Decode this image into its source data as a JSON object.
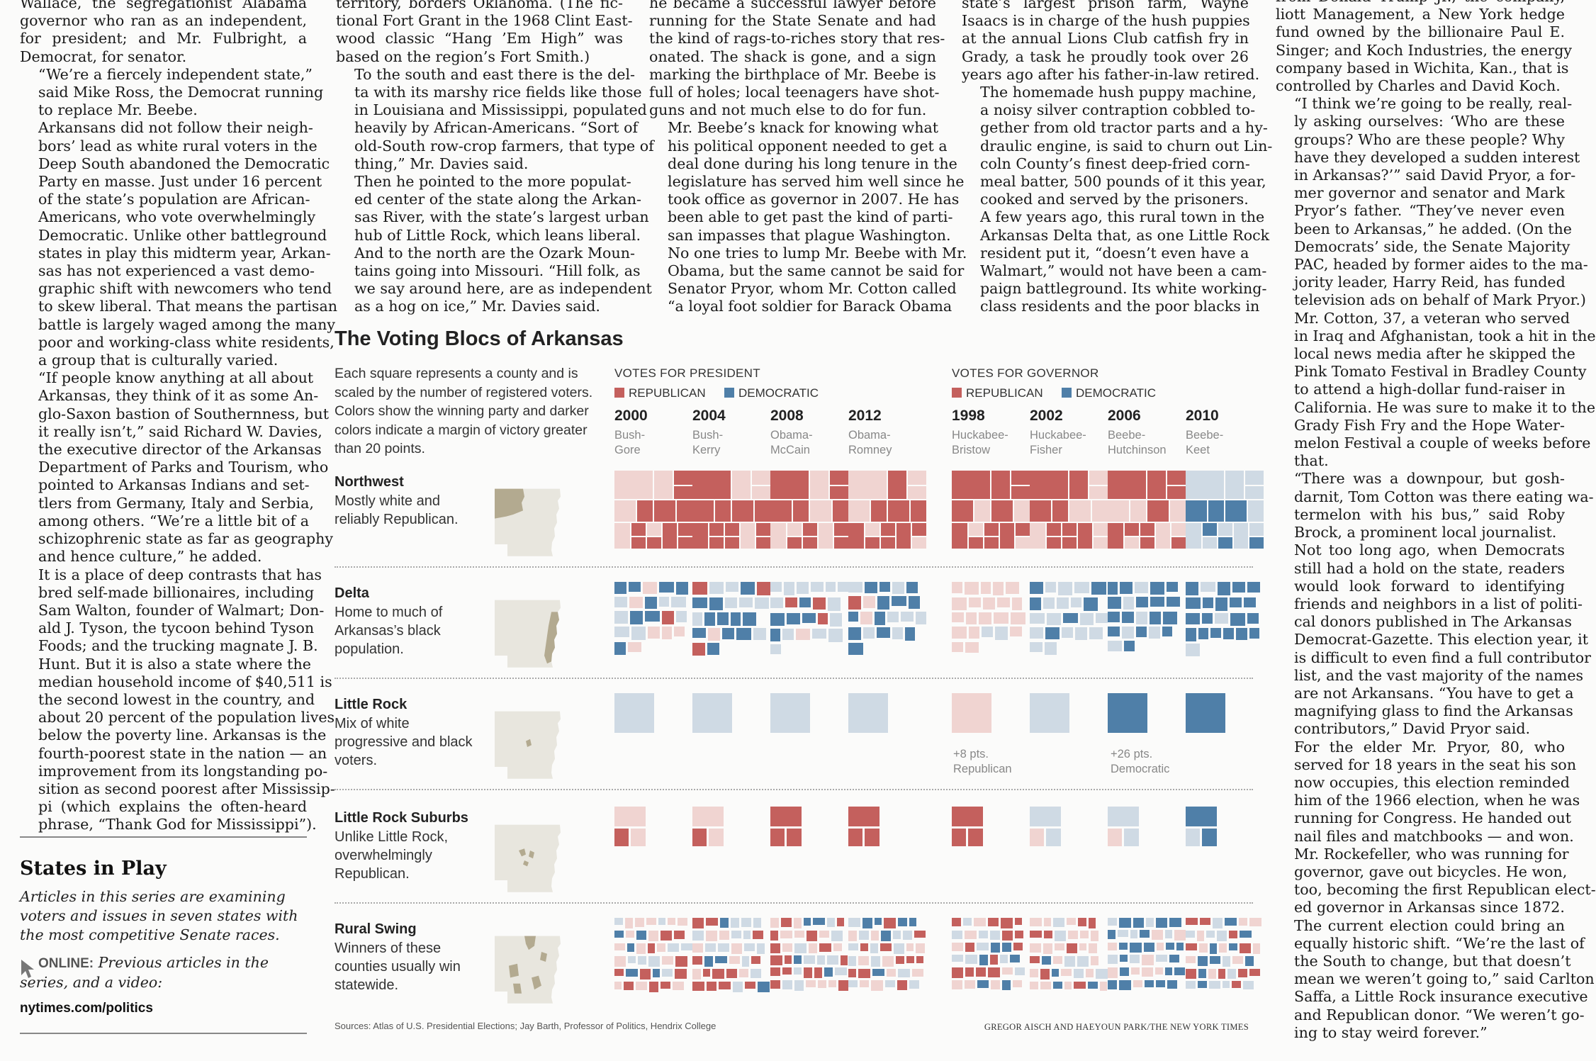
{
  "col1": [
    {
      "indent": false,
      "lines": [
        "Wallace, the segregationist Alabama",
        "governor who ran as an independent,",
        "for president; and Mr. Fulbright, a",
        "Democrat, for senator."
      ]
    },
    {
      "indent": true,
      "lines": [
        "“We’re a fiercely independent state,”",
        "said Mike Ross, the Democrat running",
        "to replace Mr. Beebe."
      ]
    },
    {
      "indent": true,
      "lines": [
        "Arkansans did not follow their neigh-",
        "bors’ lead as white rural voters in the",
        "Deep South abandoned the Democratic",
        "Party en masse. Just under 16 percent",
        "of the state’s population are African-",
        "Americans, who vote overwhelmingly",
        "Democratic. Unlike other battleground",
        "states in play this midterm year, Arkan-",
        "sas has not experienced a vast demo-",
        "graphic shift with newcomers who tend",
        "to skew liberal. That means the partisan",
        "battle is largely waged among the many",
        "poor and working-class white residents,",
        "a group that is culturally varied."
      ]
    },
    {
      "indent": true,
      "lines": [
        "“If people know anything at all about",
        "Arkansas, they think of it as some An-",
        "glo-Saxon bastion of Southernness, but",
        "it really isn’t,” said Richard W. Davies,",
        "the executive director of the Arkansas",
        "Department of Parks and Tourism, who",
        "pointed to Arkansas Indians and set-",
        "tlers from Germany, Italy and Serbia,",
        "among others. “We’re a little bit of a",
        "schizophrenic state as far as geography",
        "and hence culture,” he added."
      ]
    },
    {
      "indent": true,
      "lines": [
        "It is a place of deep contrasts that has",
        "bred self-made billionaires, including",
        "Sam Walton, founder of Walmart; Don-",
        "ald J. Tyson, the tycoon behind Tyson",
        "Foods; and the trucking magnate J. B.",
        "Hunt. But it is also a state where the",
        "median household income of $40,511 is",
        "the second lowest in the country, and",
        "about 20 percent of the population lives",
        "below the poverty line. Arkansas is the",
        "fourth-poorest state in the nation — an",
        "improvement from its longstanding po-",
        "sition as second poorest after Mississip-",
        "pi (which explains the often-heard",
        "phrase, “Thank God for Mississippi”)."
      ]
    }
  ],
  "col2": [
    {
      "indent": false,
      "lines": [
        "territory, borders Oklahoma. (The fic-",
        "tional Fort Grant in the 1968 Clint East-",
        "wood classic “Hang ’Em High” was",
        "based on the region’s Fort Smith.)"
      ]
    },
    {
      "indent": true,
      "lines": [
        "To the south and east there is the del-",
        "ta with its marshy rice fields like those",
        "in Louisiana and Mississippi, populated",
        "heavily by African-Americans. “Sort of",
        "old-South row-crop farmers, that type of",
        "thing,” Mr. Davies said."
      ]
    },
    {
      "indent": true,
      "lines": [
        "Then he pointed to the more populat-",
        "ed center of the state along the Arkan-",
        "sas River, with the state’s largest urban",
        "hub of Little Rock, which leans liberal.",
        "And to the north are the Ozark Moun-",
        "tains going into Missouri. “Hill folk, as",
        "we say around here, are as independent",
        "as a hog on ice,” Mr. Davies said."
      ]
    }
  ],
  "col3": [
    {
      "indent": false,
      "lines": [
        "he became a successful lawyer before",
        "running for the State Senate and had",
        "the kind of rags-to-riches story that res-",
        "onated. The shack is gone, and a sign",
        "marking the birthplace of Mr. Beebe is",
        "full of holes; local teenagers have shot-",
        "guns and not much else to do for fun."
      ]
    },
    {
      "indent": true,
      "lines": [
        "Mr. Beebe’s knack for knowing what",
        "his political opponent needed to get a",
        "deal done during his long tenure in the",
        "legislature has served him well since he",
        "took office as governor in 2007. He has",
        "been able to get past the kind of parti-",
        "san impasses that plague Washington.",
        "No one tries to lump Mr. Beebe with Mr.",
        "Obama, but the same cannot be said for",
        "Senator Pryor, whom Mr. Cotton called",
        "“a loyal foot soldier for Barack Obama"
      ]
    }
  ],
  "col4": [
    {
      "indent": false,
      "lines": [
        "state’s largest prison farm, Wayne",
        "Isaacs is in charge of the hush puppies",
        "at the annual Lions Club catfish fry in",
        "Grady, a task he proudly took over 26",
        "years ago after his father-in-law retired."
      ]
    },
    {
      "indent": true,
      "lines": [
        "The homemade hush puppy machine,",
        "a noisy silver contraption cobbled to-",
        "gether from old tractor parts and a hy-",
        "draulic engine, is said to churn out Lin-",
        "coln County’s finest deep-fried corn-",
        "meal batter, 500 pounds of it this year,",
        "cooked and served by the prisoners."
      ]
    },
    {
      "indent": true,
      "lines": [
        "A few years ago, this rural town in the",
        "Arkansas Delta that, as one Little Rock",
        "resident put it, “doesn’t even have a",
        "Walmart,” would not have been a cam-",
        "paign battleground. Its white working-",
        "class residents and the poor blacks in"
      ]
    }
  ],
  "col5": [
    {
      "indent": false,
      "lines": [
        "from Donald Trump Jr., the company,",
        "liott Management, a New York hedge",
        "fund owned by the billionaire Paul E.",
        "Singer; and Koch Industries, the energy",
        "company based in Wichita, Kan., that is",
        "controlled by Charles and David Koch."
      ]
    },
    {
      "indent": true,
      "lines": [
        "“I think we’re going to be really, real-",
        "ly asking ourselves: ‘Who are these",
        "groups? Who are these people? Why",
        "have they developed a sudden interest",
        "in Arkansas?’” said David Pryor, a for-",
        "mer governor and senator and Mark",
        "Pryor’s father. “They’ve never even",
        "been to Arkansas,” he added. (On the",
        "Democrats’ side, the Senate Majority",
        "PAC, headed by former aides to the ma-",
        "jority leader, Harry Reid, has funded",
        "television ads on behalf of Mark Pryor.)"
      ]
    },
    {
      "indent": true,
      "lines": [
        "Mr. Cotton, 37, a veteran who served",
        "in Iraq and Afghanistan, took a hit in the",
        "local news media after he skipped the",
        "Pink Tomato Festival in Bradley County",
        "to attend a high-dollar fund-raiser in",
        "California. He was sure to make it to the",
        "Grady Fish Fry and the Hope Water-",
        "melon Festival a couple of weeks before",
        "that."
      ]
    },
    {
      "indent": true,
      "lines": [
        "“There was a downpour, but gosh-",
        "darnit, Tom Cotton was there eating wa-",
        "termelon with his bus,” said Roby",
        "Brock, a prominent local journalist."
      ]
    },
    {
      "indent": true,
      "lines": [
        "Not too long ago, when Democrats",
        "still had a hold on the state, readers",
        "would look forward to identifying",
        "friends and neighbors in a list of politi-",
        "cal donors published in The Arkansas",
        "Democrat-Gazette. This election year, it",
        "is difficult to even find a full contributor",
        "list, and the vast majority of the names",
        "are not Arkansans. “You have to get a",
        "magnifying glass to find the Arkansas",
        "contributors,” David Pryor said."
      ]
    },
    {
      "indent": true,
      "lines": [
        "For the elder Mr. Pryor, 80, who",
        "served for 18 years in the seat his son",
        "now occupies, this election reminded",
        "him of the 1966 election, when he was",
        "running for Congress. He handed out",
        "nail files and matchbooks — and won.",
        "Mr. Rockefeller, who was running for",
        "governor, gave out bicycles. He won,",
        "too, becoming the first Republican elect-",
        "ed governor in Arkansas since 1872."
      ]
    },
    {
      "indent": true,
      "lines": [
        "The current election could bring an",
        "equally historic shift. “We’re the last of",
        "the South to change, but that doesn’t",
        "mean we weren’t going to,” said Carlton",
        "Saffa, a Little Rock insurance executive",
        "and Republican donor. “We weren’t go-",
        "ing to stay weird forever.”"
      ]
    }
  ],
  "graphic": {
    "title": "The Voting Blocs of Arkansas",
    "note": "Each square represents a county and is scaled by the number of registered voters. Colors show the winning party and darker colors indicate a margin of victory greater than 20 points.",
    "president_header": "VOTES FOR PRESIDENT",
    "governor_header": "VOTES FOR GOVERNOR",
    "key_rep": "REPUBLICAN",
    "key_dem": "DEMOCRATIC",
    "colors": {
      "rep_dark": "#c4605d",
      "rep_light": "#f0d4d1",
      "dem_dark": "#4f7fa8",
      "dem_light": "#cfdae4",
      "map_fill": "#e8e6de",
      "map_highlight": "#b3aa90"
    },
    "elections": [
      {
        "year": "2000",
        "cand1": "Bush-",
        "cand2": "Gore"
      },
      {
        "year": "2004",
        "cand1": "Bush-",
        "cand2": "Kerry"
      },
      {
        "year": "2008",
        "cand1": "Obama-",
        "cand2": "McCain"
      },
      {
        "year": "2012",
        "cand1": "Obama-",
        "cand2": "Romney"
      },
      {
        "year": "1998",
        "cand1": "Huckabee-",
        "cand2": "Bristow"
      },
      {
        "year": "2002",
        "cand1": "Huckabee-",
        "cand2": "Fisher"
      },
      {
        "year": "2006",
        "cand1": "Beebe-",
        "cand2": "Hutchinson"
      },
      {
        "year": "2010",
        "cand1": "Beebe-",
        "cand2": "Keet"
      }
    ],
    "regions": [
      {
        "name": "Northwest",
        "desc": "Mostly white and reliably Republican."
      },
      {
        "name": "Delta",
        "desc": "Home to much of Arkansas’s black population."
      },
      {
        "name": "Little Rock",
        "desc": "Mix of white progressive and black voters."
      },
      {
        "name": "Little Rock Suburbs",
        "desc": "Unlike Little Rock, overwhelmingly Republican."
      },
      {
        "name": "Rural Swing",
        "desc": "Winners of these counties usually win statewide."
      }
    ],
    "annot_1998": {
      "l1": "+8 pts.",
      "l2": "Republican"
    },
    "annot_2006": {
      "l1": "+26 pts.",
      "l2": "Democratic"
    },
    "sources": "Sources: Atlas of U.S. Presidential Elections; Jay Barth, Professor of Politics, Hendrix College",
    "credit": "GREGOR AISCH AND HAEYOUN PARK/THE NEW YORK TIMES"
  },
  "sidebar": {
    "title": "States in Play",
    "text": "Articles in this series are examining voters and issues in seven states with the most competitive Senate races.",
    "online_label": "ONLINE:",
    "online_text": "Previous articles in the series, and a video:",
    "url": "nytimes.com/politics",
    "icon": "cursor-arrow-icon"
  }
}
